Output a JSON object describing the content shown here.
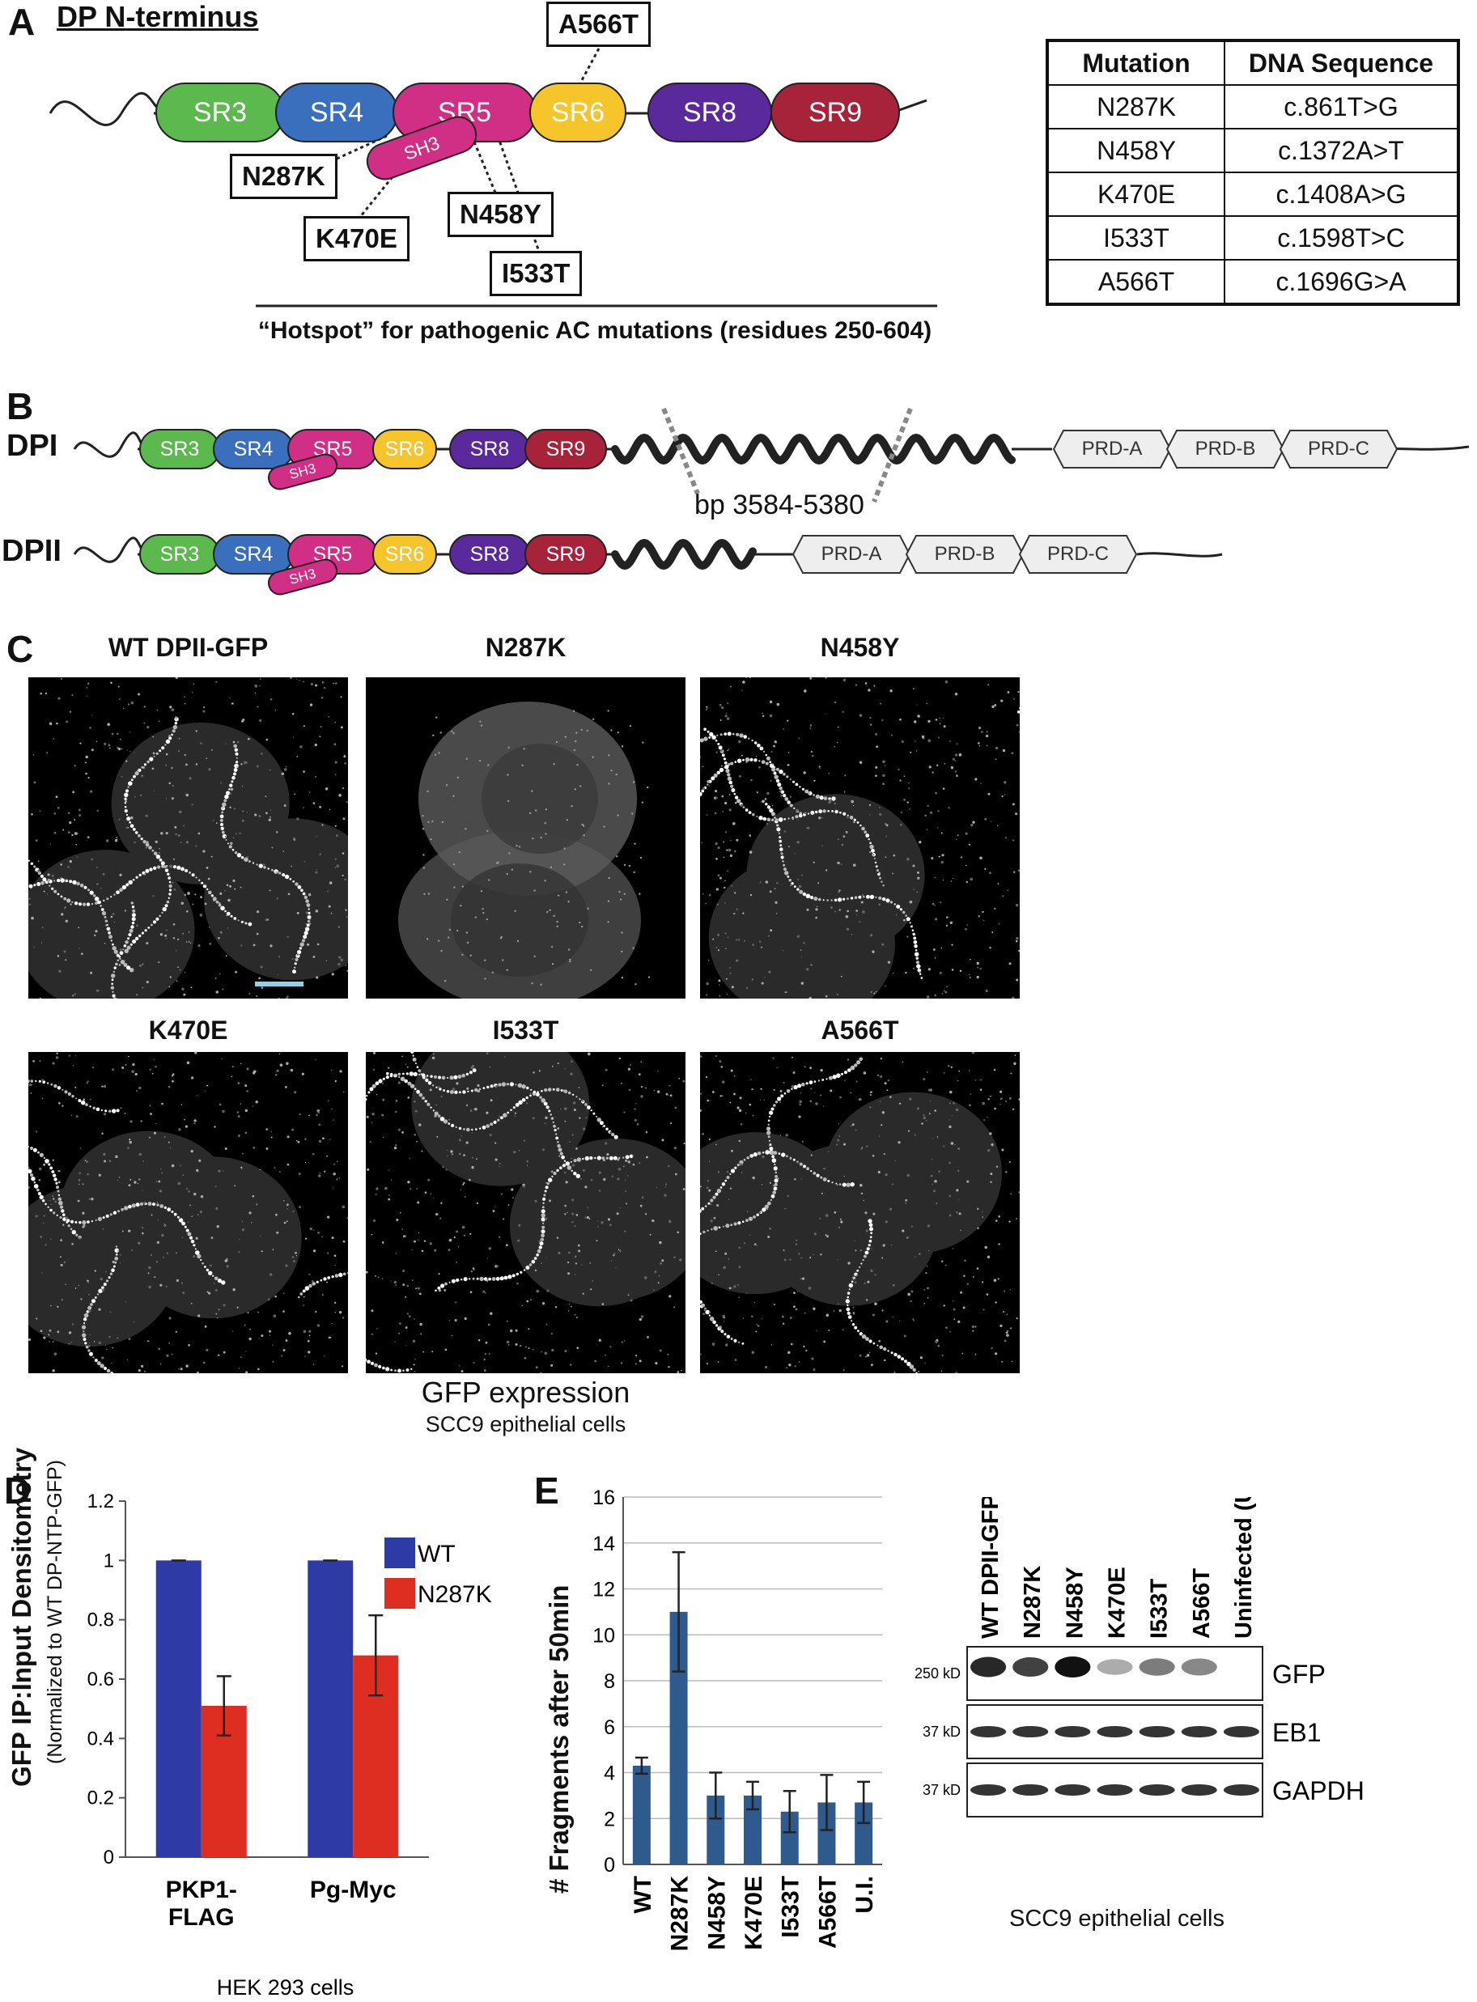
{
  "panelA": {
    "letter": "A",
    "title": "DP N-terminus",
    "domains": [
      {
        "label": "SR3",
        "color": "#5bb94d"
      },
      {
        "label": "SR4",
        "color": "#3a6fbd"
      },
      {
        "label": "SR5",
        "color": "#d12e85"
      },
      {
        "label": "SR6",
        "color": "#f6c42b"
      },
      {
        "label": "SR8",
        "color": "#5a2a9c"
      },
      {
        "label": "SR9",
        "color": "#a7233a"
      }
    ],
    "sh3": "SH3",
    "mutations": [
      "A566T",
      "N287K",
      "N458Y",
      "K470E",
      "I533T"
    ],
    "hotspot": "“Hotspot” for pathogenic AC mutations (residues 250-604)",
    "table": {
      "headers": [
        "Mutation",
        "DNA Sequence"
      ],
      "rows": [
        [
          "N287K",
          "c.861T>G"
        ],
        [
          "N458Y",
          "c.1372A>T"
        ],
        [
          "K470E",
          "c.1408A>G"
        ],
        [
          "I533T",
          "c.1598T>C"
        ],
        [
          "A566T",
          "c.1696G>A"
        ]
      ]
    }
  },
  "panelB": {
    "letter": "B",
    "dpi": "DPI",
    "dpii": "DPII",
    "bp": "bp 3584-5380",
    "prd": [
      "PRD-A",
      "PRD-B",
      "PRD-C"
    ]
  },
  "panelC": {
    "letter": "C",
    "images": [
      "WT DPII-GFP",
      "N287K",
      "N458Y",
      "K470E",
      "I533T",
      "A566T"
    ],
    "caption1": "GFP expression",
    "caption2": "SCC9 epithelial cells"
  },
  "panelD": {
    "letter": "D",
    "ylabel": "GFP IP:Input Densitometry",
    "ylabel2": "(Normalized to WT DP-NTP-GFP)",
    "xlabel": "HEK 293 cells",
    "chart_data": {
      "type": "bar",
      "categories": [
        "PKP1-FLAG",
        "Pg-Myc"
      ],
      "category_lines": [
        [
          "PKP1-",
          "FLAG"
        ],
        [
          "Pg-Myc"
        ]
      ],
      "series": [
        {
          "name": "WT",
          "color": "#2e3ba6",
          "values": [
            1,
            1
          ],
          "errors": [
            0,
            0
          ]
        },
        {
          "name": "N287K",
          "color": "#de2e22",
          "values": [
            0.51,
            0.68
          ],
          "errors": [
            0.1,
            0.135
          ]
        }
      ],
      "ylim": [
        0,
        1.2
      ],
      "yticks": [
        "0",
        "0.2",
        "0.4",
        "0.6",
        "0.8",
        "1",
        "1.2"
      ],
      "legend": "top-right"
    }
  },
  "panelE": {
    "letter": "E",
    "ylabel": "# Fragments after 50min",
    "chart_data": {
      "type": "bar",
      "categories": [
        "WT",
        "N287K",
        "N458Y",
        "K470E",
        "I533T",
        "A566T",
        "U.I."
      ],
      "values": [
        4.3,
        11.0,
        3.0,
        3.0,
        2.3,
        2.7,
        2.7
      ],
      "errors": [
        0.35,
        2.6,
        1.0,
        0.6,
        0.9,
        1.2,
        0.9
      ],
      "color": "#2f5a8e",
      "ylim": [
        0,
        16
      ],
      "yticks": [
        "0",
        "2",
        "4",
        "6",
        "8",
        "10",
        "12",
        "14",
        "16"
      ],
      "grid": true
    },
    "blot": {
      "lanes": [
        "WT DPII-GFP",
        "N287K",
        "N458Y",
        "K470E",
        "I533T",
        "A566T",
        "Uninfected (U.I.)"
      ],
      "rows": [
        {
          "label": "GFP",
          "kd": "250 kD"
        },
        {
          "label": "EB1",
          "kd": "37 kD"
        },
        {
          "label": "GAPDH",
          "kd": "37 kD"
        }
      ],
      "caption": "SCC9 epithelial cells"
    }
  }
}
